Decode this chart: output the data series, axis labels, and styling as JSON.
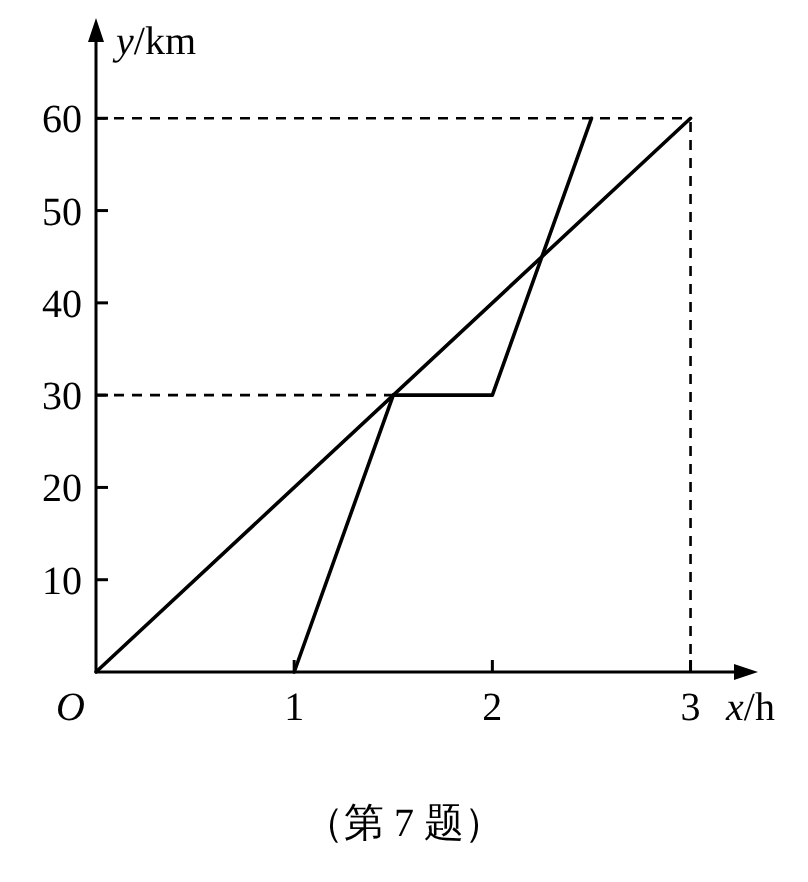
{
  "chart_data": {
    "type": "line",
    "xlabel": "x/h",
    "ylabel": "y/km",
    "series": [
      {
        "x": [
          0,
          3
        ],
        "values": [
          0,
          60
        ],
        "color": "#000000"
      },
      {
        "x": [
          1,
          1.5,
          2,
          2.5
        ],
        "values": [
          0,
          30,
          30,
          60
        ],
        "color": "#000000"
      }
    ],
    "xlim": [
      0,
      3.3
    ],
    "ylim": [
      0,
      70
    ],
    "xticks": [
      1,
      2,
      3
    ],
    "yticks": [
      10,
      20,
      30,
      40,
      50,
      60
    ],
    "ref_lines": [
      {
        "axis": "y",
        "value": 60,
        "line_style": "dashed",
        "color": "#000000"
      },
      {
        "axis": "y",
        "value": 30,
        "line_style": "dashed",
        "color": "#000000"
      },
      {
        "axis": "x",
        "value": 3,
        "line_style": "dashed",
        "color": "#000000"
      }
    ],
    "annotations": [
      {
        "text": "O",
        "x": 0,
        "y": 0
      },
      "（第 7 题）"
    ],
    "grid": false,
    "marker": "none",
    "line_style": "solid"
  }
}
